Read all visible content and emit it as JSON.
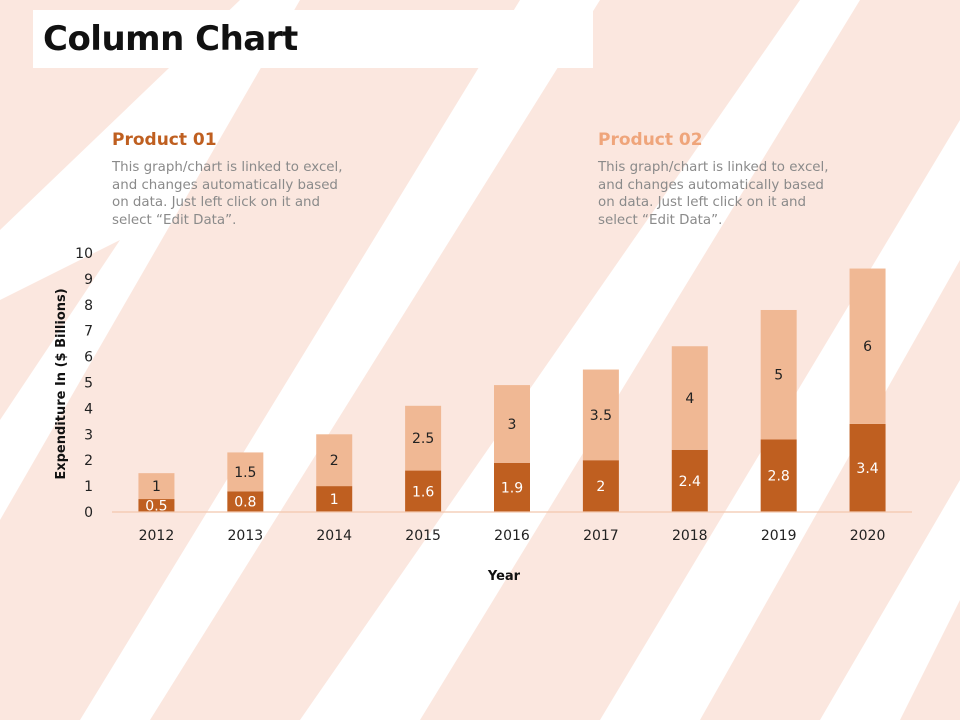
{
  "title": "Column Chart",
  "legend": [
    {
      "heading": "Product 01",
      "color": "#bf5f20",
      "description": [
        "This graph/chart is linked to excel,",
        "and changes automatically based",
        "on data. Just left click on it and",
        "select “Edit Data”."
      ]
    },
    {
      "heading": "Product 02",
      "color": "#f0b894",
      "description": [
        "This graph/chart is linked to excel,",
        "and changes automatically based",
        "on data. Just left click on it and",
        "select “Edit Data”."
      ]
    }
  ],
  "chart_data": {
    "type": "bar",
    "stacked": true,
    "categories": [
      "2012",
      "2013",
      "2014",
      "2015",
      "2016",
      "2017",
      "2018",
      "2019",
      "2020"
    ],
    "series": [
      {
        "name": "Product 01",
        "color": "#bf5f20",
        "values": [
          0.5,
          0.8,
          1,
          1.6,
          1.9,
          2,
          2.4,
          2.8,
          3.4
        ]
      },
      {
        "name": "Product 02",
        "color": "#f0b894",
        "values": [
          1,
          1.5,
          2,
          2.5,
          3,
          3.5,
          4,
          5,
          6
        ]
      }
    ],
    "xlabel": "Year",
    "ylabel": "Expenditure In ($ Billions)",
    "ylim": [
      0,
      10
    ],
    "yticks": [
      0,
      1,
      2,
      3,
      4,
      5,
      6,
      7,
      8,
      9,
      10
    ],
    "grid": false,
    "axis_color": "#f2c7ad"
  }
}
